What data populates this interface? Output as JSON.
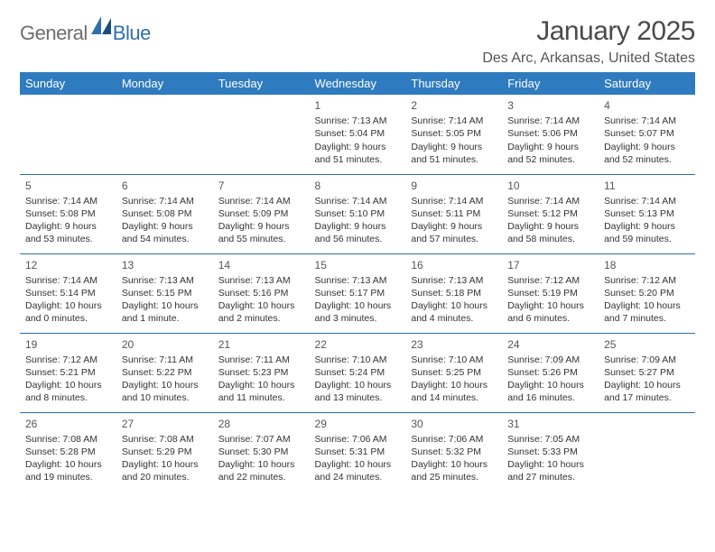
{
  "brand": {
    "part1": "General",
    "part2": "Blue"
  },
  "title": "January 2025",
  "location": "Des Arc, Arkansas, United States",
  "colors": {
    "header_bg": "#2f7bbf",
    "header_text": "#ffffff",
    "rule": "#2f6fab",
    "text": "#333333",
    "title": "#4a4a4a",
    "logo_gray": "#6d6d6d",
    "logo_blue": "#2f6fab",
    "background": "#ffffff"
  },
  "weekdays": [
    "Sunday",
    "Monday",
    "Tuesday",
    "Wednesday",
    "Thursday",
    "Friday",
    "Saturday"
  ],
  "layout": {
    "first_weekday_index": 3,
    "num_days": 31
  },
  "days": [
    {
      "n": 1,
      "sunrise": "7:13 AM",
      "sunset": "5:04 PM",
      "daylight": "9 hours and 51 minutes."
    },
    {
      "n": 2,
      "sunrise": "7:14 AM",
      "sunset": "5:05 PM",
      "daylight": "9 hours and 51 minutes."
    },
    {
      "n": 3,
      "sunrise": "7:14 AM",
      "sunset": "5:06 PM",
      "daylight": "9 hours and 52 minutes."
    },
    {
      "n": 4,
      "sunrise": "7:14 AM",
      "sunset": "5:07 PM",
      "daylight": "9 hours and 52 minutes."
    },
    {
      "n": 5,
      "sunrise": "7:14 AM",
      "sunset": "5:08 PM",
      "daylight": "9 hours and 53 minutes."
    },
    {
      "n": 6,
      "sunrise": "7:14 AM",
      "sunset": "5:08 PM",
      "daylight": "9 hours and 54 minutes."
    },
    {
      "n": 7,
      "sunrise": "7:14 AM",
      "sunset": "5:09 PM",
      "daylight": "9 hours and 55 minutes."
    },
    {
      "n": 8,
      "sunrise": "7:14 AM",
      "sunset": "5:10 PM",
      "daylight": "9 hours and 56 minutes."
    },
    {
      "n": 9,
      "sunrise": "7:14 AM",
      "sunset": "5:11 PM",
      "daylight": "9 hours and 57 minutes."
    },
    {
      "n": 10,
      "sunrise": "7:14 AM",
      "sunset": "5:12 PM",
      "daylight": "9 hours and 58 minutes."
    },
    {
      "n": 11,
      "sunrise": "7:14 AM",
      "sunset": "5:13 PM",
      "daylight": "9 hours and 59 minutes."
    },
    {
      "n": 12,
      "sunrise": "7:14 AM",
      "sunset": "5:14 PM",
      "daylight": "10 hours and 0 minutes."
    },
    {
      "n": 13,
      "sunrise": "7:13 AM",
      "sunset": "5:15 PM",
      "daylight": "10 hours and 1 minute."
    },
    {
      "n": 14,
      "sunrise": "7:13 AM",
      "sunset": "5:16 PM",
      "daylight": "10 hours and 2 minutes."
    },
    {
      "n": 15,
      "sunrise": "7:13 AM",
      "sunset": "5:17 PM",
      "daylight": "10 hours and 3 minutes."
    },
    {
      "n": 16,
      "sunrise": "7:13 AM",
      "sunset": "5:18 PM",
      "daylight": "10 hours and 4 minutes."
    },
    {
      "n": 17,
      "sunrise": "7:12 AM",
      "sunset": "5:19 PM",
      "daylight": "10 hours and 6 minutes."
    },
    {
      "n": 18,
      "sunrise": "7:12 AM",
      "sunset": "5:20 PM",
      "daylight": "10 hours and 7 minutes."
    },
    {
      "n": 19,
      "sunrise": "7:12 AM",
      "sunset": "5:21 PM",
      "daylight": "10 hours and 8 minutes."
    },
    {
      "n": 20,
      "sunrise": "7:11 AM",
      "sunset": "5:22 PM",
      "daylight": "10 hours and 10 minutes."
    },
    {
      "n": 21,
      "sunrise": "7:11 AM",
      "sunset": "5:23 PM",
      "daylight": "10 hours and 11 minutes."
    },
    {
      "n": 22,
      "sunrise": "7:10 AM",
      "sunset": "5:24 PM",
      "daylight": "10 hours and 13 minutes."
    },
    {
      "n": 23,
      "sunrise": "7:10 AM",
      "sunset": "5:25 PM",
      "daylight": "10 hours and 14 minutes."
    },
    {
      "n": 24,
      "sunrise": "7:09 AM",
      "sunset": "5:26 PM",
      "daylight": "10 hours and 16 minutes."
    },
    {
      "n": 25,
      "sunrise": "7:09 AM",
      "sunset": "5:27 PM",
      "daylight": "10 hours and 17 minutes."
    },
    {
      "n": 26,
      "sunrise": "7:08 AM",
      "sunset": "5:28 PM",
      "daylight": "10 hours and 19 minutes."
    },
    {
      "n": 27,
      "sunrise": "7:08 AM",
      "sunset": "5:29 PM",
      "daylight": "10 hours and 20 minutes."
    },
    {
      "n": 28,
      "sunrise": "7:07 AM",
      "sunset": "5:30 PM",
      "daylight": "10 hours and 22 minutes."
    },
    {
      "n": 29,
      "sunrise": "7:06 AM",
      "sunset": "5:31 PM",
      "daylight": "10 hours and 24 minutes."
    },
    {
      "n": 30,
      "sunrise": "7:06 AM",
      "sunset": "5:32 PM",
      "daylight": "10 hours and 25 minutes."
    },
    {
      "n": 31,
      "sunrise": "7:05 AM",
      "sunset": "5:33 PM",
      "daylight": "10 hours and 27 minutes."
    }
  ],
  "labels": {
    "sunrise": "Sunrise:",
    "sunset": "Sunset:",
    "daylight": "Daylight:"
  }
}
